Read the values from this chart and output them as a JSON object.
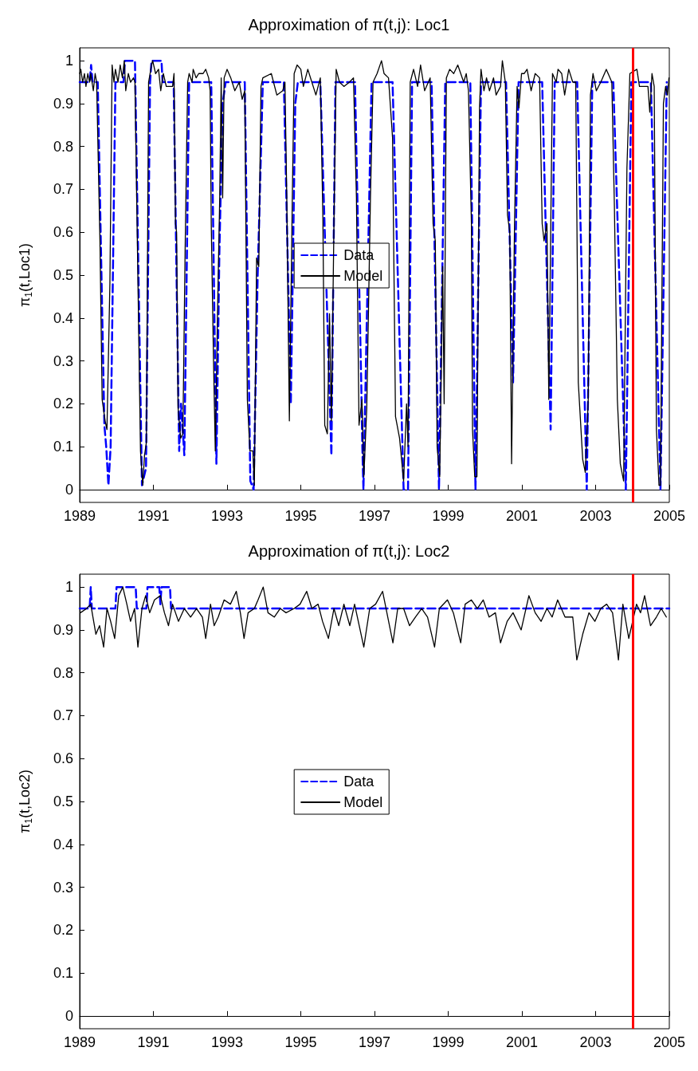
{
  "chart_data": [
    {
      "type": "line",
      "title": "Approximation of π(t,j): Loc1",
      "ylabel": "π$_{1}$(t,Loc1)",
      "xlim": [
        1989,
        2005
      ],
      "xticks": [
        1989,
        1991,
        1993,
        1995,
        1997,
        1999,
        2001,
        2003,
        2005
      ],
      "ylim": [
        -0.03,
        1.03
      ],
      "yticks": [
        0,
        0.1,
        0.2,
        0.3,
        0.4,
        0.5,
        0.6,
        0.7,
        0.8,
        0.9,
        1
      ],
      "legend": "center",
      "ref_lines": [
        {
          "axis": "x",
          "value": 2004,
          "color": "#ff0000"
        }
      ],
      "series": [
        {
          "name": "Data",
          "color": "#0000ff",
          "line_style": "dashed",
          "x": [
            1989.0,
            1989.27,
            1989.31,
            1989.35,
            1989.49,
            1989.67,
            1989.72,
            1989.78,
            1989.84,
            1989.97,
            1990.19,
            1990.23,
            1990.5,
            1990.69,
            1990.8,
            1990.91,
            1990.95,
            1991.22,
            1991.25,
            1991.55,
            1991.7,
            1991.75,
            1991.84,
            1991.97,
            1992.57,
            1992.71,
            1992.79,
            1992.88,
            1992.96,
            1993.48,
            1993.63,
            1993.72,
            1993.83,
            1993.97,
            1994.54,
            1994.73,
            1994.85,
            1994.92,
            1995.53,
            1995.83,
            1995.94,
            1996.47,
            1996.64,
            1996.67,
            1996.7,
            1996.92,
            1997.49,
            1997.79,
            1997.91,
            1998.02,
            1998.55,
            1998.75,
            1998.92,
            1999.6,
            1999.74,
            1999.89,
            2000.57,
            2000.76,
            2000.91,
            2001.55,
            2001.78,
            2001.89,
            2002.5,
            2002.76,
            2002.91,
            2003.48,
            2003.82,
            2003.97,
            2004.5,
            2004.76,
            2004.93
          ],
          "values": [
            0.95,
            0.95,
            0.99,
            0.95,
            0.95,
            0.15,
            0.1,
            0.01,
            0.1,
            0.95,
            0.95,
            1.0,
            1.0,
            0.01,
            0.05,
            0.95,
            1.0,
            1.0,
            0.95,
            0.95,
            0.09,
            0.2,
            0.08,
            0.95,
            0.95,
            0.06,
            0.55,
            0.9,
            0.95,
            0.95,
            0.02,
            0.0,
            0.5,
            0.95,
            0.95,
            0.2,
            0.9,
            0.95,
            0.95,
            0.08,
            0.95,
            0.95,
            0.25,
            0.1,
            0.0,
            0.95,
            0.95,
            0.0,
            0.0,
            0.95,
            0.95,
            0.0,
            0.95,
            0.95,
            0.0,
            0.95,
            0.95,
            0.25,
            0.95,
            0.95,
            0.14,
            0.95,
            0.95,
            0.0,
            0.95,
            0.95,
            0.0,
            0.95,
            0.95,
            0.0,
            0.95
          ]
        },
        {
          "name": "Model",
          "color": "#000000",
          "line_style": "solid",
          "x": [
            1989.0,
            1989.03,
            1989.08,
            1989.13,
            1989.17,
            1989.22,
            1989.27,
            1989.3,
            1989.37,
            1989.42,
            1989.46,
            1989.55,
            1989.61,
            1989.69,
            1989.74,
            1989.82,
            1989.88,
            1989.93,
            1989.97,
            1990.04,
            1990.1,
            1990.16,
            1990.21,
            1990.25,
            1990.32,
            1990.38,
            1990.46,
            1990.5,
            1990.57,
            1990.65,
            1990.71,
            1990.76,
            1990.81,
            1990.87,
            1990.95,
            1990.98,
            1991.06,
            1991.14,
            1991.2,
            1991.27,
            1991.35,
            1991.52,
            1991.56,
            1991.6,
            1991.63,
            1991.67,
            1991.74,
            1991.8,
            1991.86,
            1991.93,
            1991.97,
            1992.05,
            1992.08,
            1992.16,
            1992.23,
            1992.35,
            1992.42,
            1992.5,
            1992.54,
            1992.57,
            1992.63,
            1992.68,
            1992.74,
            1992.8,
            1992.84,
            1992.88,
            1992.92,
            1993.0,
            1993.1,
            1993.21,
            1993.33,
            1993.41,
            1993.48,
            1993.55,
            1993.62,
            1993.7,
            1993.74,
            1993.8,
            1993.86,
            1993.92,
            1993.97,
            1994.2,
            1994.35,
            1994.51,
            1994.57,
            1994.62,
            1994.69,
            1994.77,
            1994.82,
            1994.9,
            1995.0,
            1995.07,
            1995.19,
            1995.3,
            1995.41,
            1995.53,
            1995.6,
            1995.65,
            1995.72,
            1995.78,
            1995.83,
            1995.9,
            1995.96,
            1996.05,
            1996.17,
            1996.32,
            1996.43,
            1996.51,
            1996.58,
            1996.66,
            1996.71,
            1996.79,
            1996.89,
            1996.96,
            1997.07,
            1997.19,
            1997.26,
            1997.38,
            1997.49,
            1997.57,
            1997.68,
            1997.79,
            1997.87,
            1997.91,
            1997.97,
            1998.06,
            1998.17,
            1998.25,
            1998.36,
            1998.51,
            1998.59,
            1998.65,
            1998.7,
            1998.77,
            1998.85,
            1998.89,
            1998.95,
            1999.04,
            1999.15,
            1999.26,
            1999.42,
            1999.49,
            1999.55,
            1999.63,
            1999.66,
            1999.72,
            1999.78,
            1999.85,
            1999.89,
            1999.97,
            2000.04,
            2000.12,
            2000.23,
            2000.3,
            2000.42,
            2000.47,
            2000.55,
            2000.61,
            2000.67,
            2000.72,
            2000.8,
            2000.87,
            2000.92,
            2000.99,
            2001.06,
            2001.14,
            2001.25,
            2001.36,
            2001.48,
            2001.55,
            2001.6,
            2001.68,
            2001.73,
            2001.78,
            2001.83,
            2001.93,
            2001.98,
            2002.08,
            2002.16,
            2002.27,
            2002.38,
            2002.46,
            2002.53,
            2002.65,
            2002.72,
            2002.8,
            2002.86,
            2002.93,
            2003.02,
            2003.14,
            2003.29,
            2003.44,
            2003.51,
            2003.59,
            2003.67,
            2003.76,
            2003.85,
            2003.93,
            2004.01,
            2004.12,
            2004.19,
            2004.31,
            2004.42,
            2004.47,
            2004.53,
            2004.59,
            2004.65,
            2004.72,
            2004.76,
            2004.84,
            2004.9,
            2004.95,
            2004.99
          ],
          "values": [
            0.97,
            0.98,
            0.95,
            0.97,
            0.94,
            0.97,
            0.95,
            0.97,
            0.93,
            0.97,
            0.95,
            0.58,
            0.21,
            0.16,
            0.14,
            0.48,
            0.99,
            0.95,
            0.98,
            0.95,
            0.99,
            0.96,
            1.0,
            0.93,
            0.97,
            0.95,
            0.96,
            0.95,
            0.55,
            0.09,
            0.01,
            0.08,
            0.11,
            0.95,
            0.99,
            1.0,
            0.97,
            0.98,
            0.93,
            0.97,
            0.94,
            0.94,
            0.97,
            0.62,
            0.6,
            0.19,
            0.12,
            0.13,
            0.55,
            0.95,
            0.97,
            0.95,
            0.98,
            0.96,
            0.97,
            0.97,
            0.98,
            0.96,
            0.93,
            0.62,
            0.31,
            0.09,
            0.41,
            0.68,
            0.96,
            0.68,
            0.96,
            0.98,
            0.96,
            0.93,
            0.95,
            0.91,
            0.93,
            0.21,
            0.09,
            0.09,
            0.01,
            0.54,
            0.52,
            0.94,
            0.96,
            0.97,
            0.92,
            0.93,
            0.95,
            0.68,
            0.16,
            0.68,
            0.97,
            0.99,
            0.98,
            0.94,
            0.98,
            0.95,
            0.92,
            0.96,
            0.63,
            0.15,
            0.13,
            0.41,
            0.16,
            0.62,
            0.98,
            0.95,
            0.94,
            0.95,
            0.96,
            0.68,
            0.15,
            0.21,
            0.03,
            0.19,
            0.68,
            0.95,
            0.97,
            1.0,
            0.97,
            0.96,
            0.82,
            0.17,
            0.12,
            0.02,
            0.2,
            0.1,
            0.95,
            0.98,
            0.94,
            0.99,
            0.93,
            0.96,
            0.62,
            0.58,
            0.1,
            0.03,
            0.52,
            0.2,
            0.96,
            0.98,
            0.97,
            0.99,
            0.95,
            0.97,
            0.93,
            0.62,
            0.14,
            0.03,
            0.03,
            0.89,
            0.98,
            0.93,
            0.96,
            0.93,
            0.96,
            0.92,
            0.94,
            1.0,
            0.95,
            0.64,
            0.6,
            0.06,
            0.62,
            0.94,
            0.89,
            0.97,
            0.97,
            0.98,
            0.93,
            0.97,
            0.96,
            0.62,
            0.58,
            0.62,
            0.21,
            0.59,
            0.97,
            0.95,
            0.98,
            0.97,
            0.92,
            0.98,
            0.95,
            0.95,
            0.25,
            0.07,
            0.04,
            0.21,
            0.92,
            0.97,
            0.93,
            0.95,
            0.98,
            0.95,
            0.66,
            0.21,
            0.06,
            0.02,
            0.75,
            0.97,
            null,
            0.98,
            0.94,
            0.94,
            0.94,
            0.88,
            0.97,
            0.94,
            0.14,
            0.01,
            0.01,
            0.9,
            0.94,
            0.92,
            0.96
          ]
        }
      ]
    },
    {
      "type": "line",
      "title": "Approximation of π(t,j): Loc2",
      "ylabel": "π$_{1}$(t,Loc2)",
      "xlim": [
        1989,
        2005
      ],
      "xticks": [
        1989,
        1991,
        1993,
        1995,
        1997,
        1999,
        2001,
        2003,
        2005
      ],
      "ylim": [
        -0.03,
        1.03
      ],
      "yticks": [
        0,
        0.1,
        0.2,
        0.3,
        0.4,
        0.5,
        0.6,
        0.7,
        0.8,
        0.9,
        1
      ],
      "legend": "center",
      "ref_lines": [
        {
          "axis": "x",
          "value": 2004,
          "color": "#ff0000"
        }
      ],
      "series": [
        {
          "name": "Data",
          "color": "#0000ff",
          "line_style": "dashed",
          "x": [
            1989.0,
            1989.27,
            1989.3,
            1989.33,
            1989.97,
            1990.0,
            1990.52,
            1990.55,
            1990.81,
            1990.84,
            1991.16,
            1991.19,
            1991.22,
            1991.45,
            1991.48,
            2005.0
          ],
          "values": [
            0.95,
            0.95,
            1.0,
            0.95,
            0.95,
            1.0,
            1.0,
            0.95,
            0.95,
            1.0,
            1.0,
            0.96,
            1.0,
            1.0,
            0.95,
            0.95
          ]
        },
        {
          "name": "Model",
          "color": "#000000",
          "line_style": "solid",
          "x": [
            1989.02,
            1989.19,
            1989.3,
            1989.36,
            1989.44,
            1989.54,
            1989.65,
            1989.74,
            1989.84,
            1989.95,
            1990.06,
            1990.17,
            1990.28,
            1990.38,
            1990.49,
            1990.58,
            1990.69,
            1990.79,
            1990.9,
            1991.03,
            1991.19,
            1991.3,
            1991.41,
            1991.52,
            1991.68,
            1991.84,
            1992.01,
            1992.17,
            1992.33,
            1992.42,
            1992.55,
            1992.65,
            1992.76,
            1992.92,
            1993.09,
            1993.25,
            1993.36,
            1993.46,
            1993.57,
            1993.74,
            1993.84,
            1993.98,
            1994.11,
            1994.28,
            1994.44,
            1994.6,
            1994.82,
            1994.98,
            1995.16,
            1995.3,
            1995.47,
            1995.59,
            1995.75,
            1995.9,
            1996.03,
            1996.17,
            1996.33,
            1996.46,
            1996.71,
            1996.87,
            1997.03,
            1997.22,
            1997.36,
            1997.5,
            1997.63,
            1997.79,
            1997.95,
            1998.11,
            1998.28,
            1998.44,
            1998.63,
            1998.76,
            1998.98,
            1999.14,
            1999.34,
            1999.46,
            1999.63,
            1999.79,
            1999.95,
            2000.11,
            2000.28,
            2000.42,
            2000.6,
            2000.76,
            2000.98,
            2001.19,
            2001.36,
            2001.52,
            2001.68,
            2001.82,
            2001.97,
            2002.17,
            2002.38,
            2002.49,
            2002.65,
            2002.82,
            2002.98,
            2003.14,
            2003.3,
            2003.46,
            2003.62,
            2003.74,
            2003.9,
            2004.01,
            2004.11,
            2004.22,
            2004.33,
            2004.49,
            2004.65,
            2004.78,
            2004.92
          ],
          "values": [
            0.94,
            0.95,
            0.96,
            0.93,
            0.89,
            0.91,
            0.86,
            0.95,
            0.92,
            0.88,
            0.98,
            1.0,
            0.96,
            0.92,
            0.95,
            0.86,
            0.95,
            0.98,
            0.94,
            0.97,
            0.98,
            0.94,
            0.91,
            0.96,
            0.92,
            0.95,
            0.93,
            0.95,
            0.93,
            0.88,
            0.96,
            0.91,
            0.93,
            0.97,
            0.96,
            0.99,
            0.94,
            0.88,
            0.94,
            0.95,
            0.97,
            1.0,
            0.94,
            0.93,
            0.95,
            0.94,
            0.95,
            0.96,
            0.99,
            0.95,
            0.96,
            0.92,
            0.88,
            0.95,
            0.91,
            0.96,
            0.91,
            0.96,
            0.86,
            0.95,
            0.96,
            0.99,
            0.93,
            0.87,
            0.95,
            0.95,
            0.91,
            0.93,
            0.95,
            0.93,
            0.86,
            0.95,
            0.97,
            0.94,
            0.87,
            0.96,
            0.97,
            0.95,
            0.97,
            0.93,
            0.94,
            0.87,
            0.92,
            0.94,
            0.9,
            0.98,
            0.94,
            0.92,
            0.95,
            0.93,
            0.97,
            0.93,
            0.93,
            0.83,
            0.89,
            0.94,
            0.92,
            0.95,
            0.96,
            0.94,
            0.83,
            0.96,
            0.88,
            null,
            0.96,
            0.94,
            0.98,
            0.91,
            0.93,
            0.95,
            0.93
          ]
        }
      ]
    }
  ]
}
